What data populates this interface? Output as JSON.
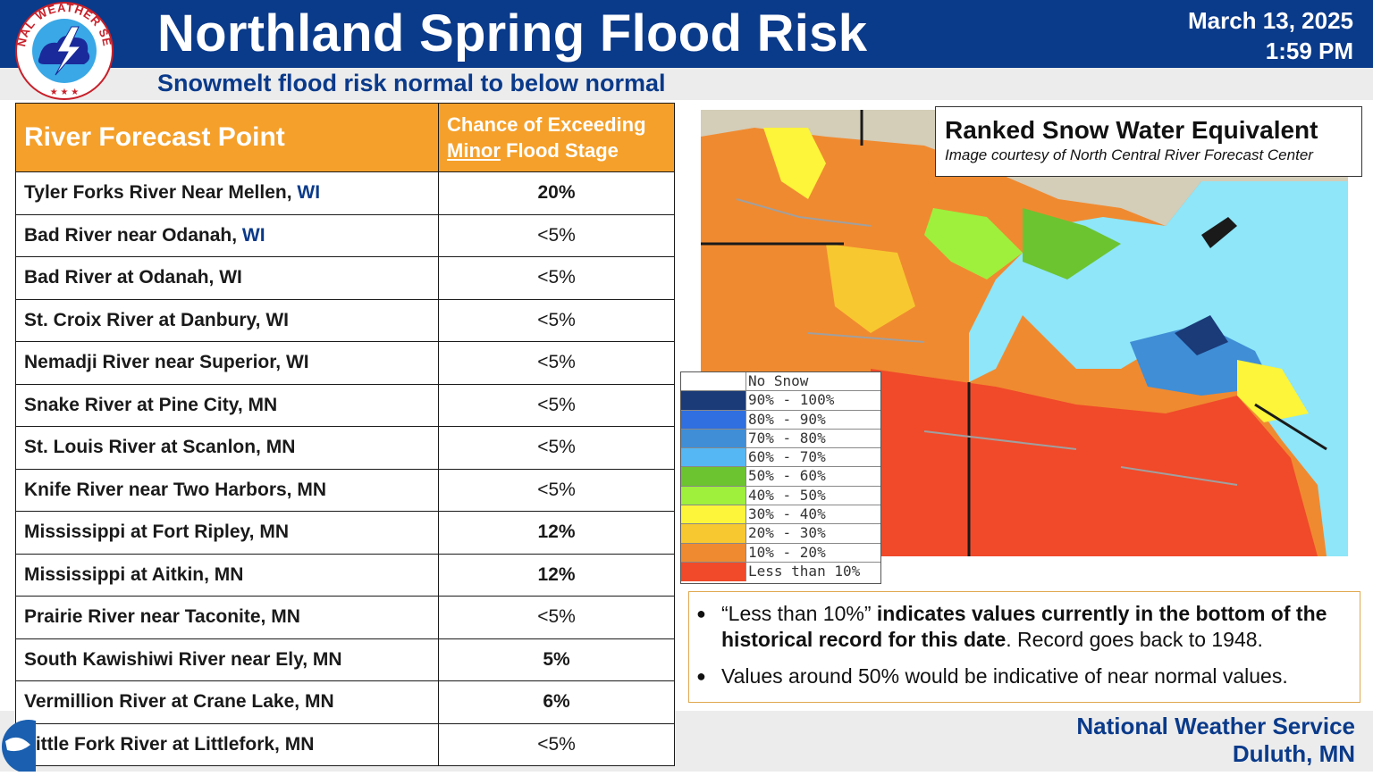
{
  "header": {
    "title": "Northland Spring Flood Risk",
    "date": "March 13, 2025",
    "time": "1:59 PM",
    "subtitle": "Snowmelt flood risk normal to below normal",
    "logo_text": "NATIONAL WEATHER SERVICE"
  },
  "table": {
    "col1_header": "River Forecast Point",
    "col2_header_line1": "Chance of Exceeding",
    "col2_header_minor": "Minor",
    "col2_header_rest": " Flood Stage",
    "rows": [
      {
        "point": "Tyler Forks River Near Mellen, ",
        "state": "WI",
        "state_color": "#0a3a8a",
        "chance": "20%",
        "bold": true
      },
      {
        "point": "Bad River near Odanah, ",
        "state": "WI",
        "state_color": "#0a3a8a",
        "chance": "<5%",
        "bold": false
      },
      {
        "point": "Bad River at Odanah, ",
        "state": "WI",
        "state_color": "#1a1a1a",
        "chance": "<5%",
        "bold": false
      },
      {
        "point": "St. Croix River at Danbury, ",
        "state": "WI",
        "state_color": "#1a1a1a",
        "chance": "<5%",
        "bold": false
      },
      {
        "point": "Nemadji River near Superior, ",
        "state": "WI",
        "state_color": "#1a1a1a",
        "chance": "<5%",
        "bold": false
      },
      {
        "point": "Snake River at Pine City, ",
        "state": "MN",
        "state_color": "#1a1a1a",
        "chance": "<5%",
        "bold": false
      },
      {
        "point": "St. Louis River at Scanlon, ",
        "state": "MN",
        "state_color": "#1a1a1a",
        "chance": "<5%",
        "bold": false
      },
      {
        "point": "Knife River near Two Harbors, ",
        "state": "MN",
        "state_color": "#1a1a1a",
        "chance": "<5%",
        "bold": false
      },
      {
        "point": "Mississippi at Fort Ripley, ",
        "state": "MN",
        "state_color": "#1a1a1a",
        "chance": "12%",
        "bold": true
      },
      {
        "point": "Mississippi at Aitkin, ",
        "state": "MN",
        "state_color": "#1a1a1a",
        "chance": "12%",
        "bold": true
      },
      {
        "point": "Prairie River near Taconite, ",
        "state": "MN",
        "state_color": "#1a1a1a",
        "chance": "<5%",
        "bold": false
      },
      {
        "point": "South Kawishiwi River near Ely, ",
        "state": "MN",
        "state_color": "#1a1a1a",
        "chance": "5%",
        "bold": true
      },
      {
        "point": "Vermillion River at Crane Lake, ",
        "state": "MN",
        "state_color": "#1a1a1a",
        "chance": "6%",
        "bold": true
      },
      {
        "point": "Little Fork River at Littlefork, ",
        "state": "MN",
        "state_color": "#1a1a1a",
        "chance": "<5%",
        "bold": false
      }
    ]
  },
  "map": {
    "title": "Ranked Snow Water Equivalent",
    "credit": "Image courtesy of North Central River Forecast Center",
    "legend": [
      {
        "label": "No Snow",
        "color": "#ffffff"
      },
      {
        "label": "90% - 100%",
        "color": "#1a3a78"
      },
      {
        "label": "80% - 90%",
        "color": "#2f6fe0"
      },
      {
        "label": "70% - 80%",
        "color": "#3f8ed6"
      },
      {
        "label": "60% - 70%",
        "color": "#55b8f5"
      },
      {
        "label": "50% - 60%",
        "color": "#6cc430"
      },
      {
        "label": "40% - 50%",
        "color": "#9ef03c"
      },
      {
        "label": "30% - 40%",
        "color": "#fcf53a"
      },
      {
        "label": "20% - 30%",
        "color": "#f8c830"
      },
      {
        "label": "10% - 20%",
        "color": "#f08a30"
      },
      {
        "label": "Less than 10%",
        "color": "#f04a2a"
      }
    ],
    "colors": {
      "lake": "#8ee6f8",
      "land_gray": "#d4cdb8",
      "border": "#a0a0a0"
    }
  },
  "notes": {
    "n1_pre": "“Less than 10%” ",
    "n1_bold": "indicates values currently in the bottom of the historical record for this date",
    "n1_post": ". Record goes back to 1948.",
    "n2": "Values around 50% would be indicative of near normal values."
  },
  "footer": {
    "line1": "National Weather Service",
    "line2": "Duluth, MN"
  }
}
